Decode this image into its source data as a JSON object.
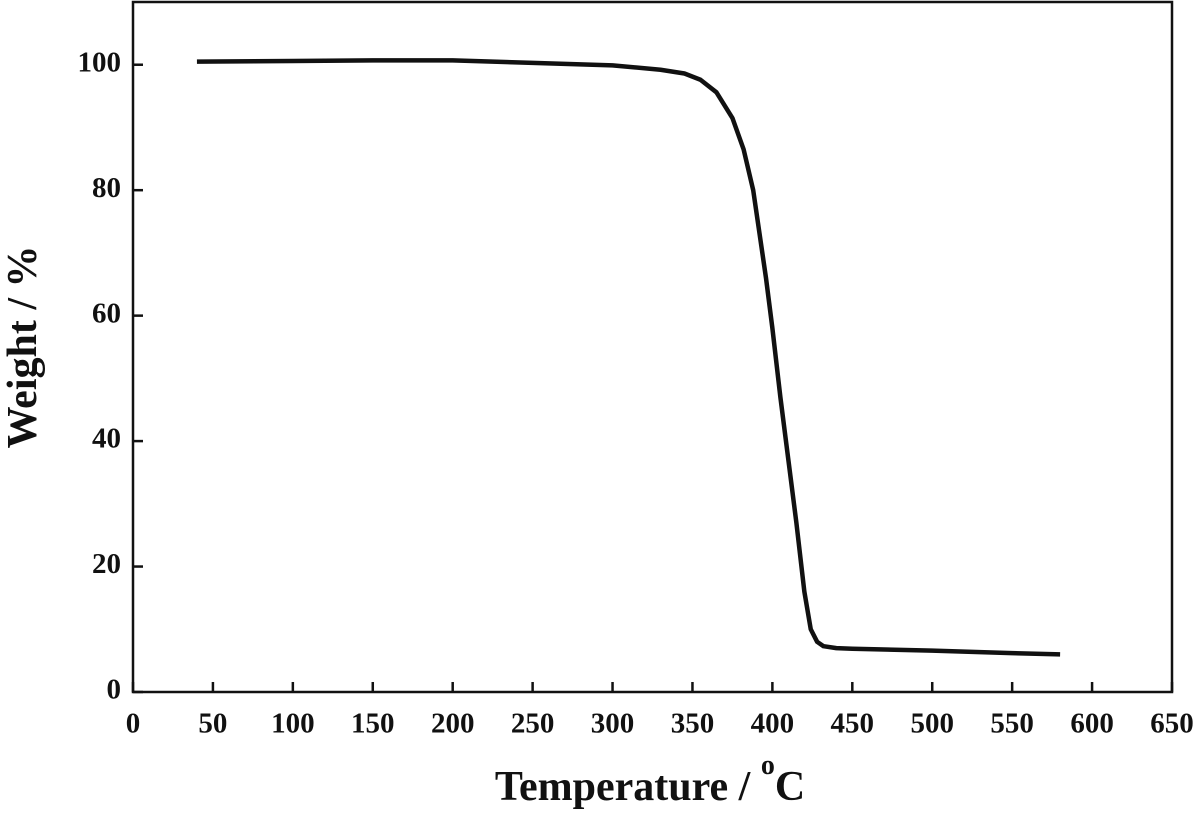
{
  "chart_data": {
    "type": "line",
    "xlabel": {
      "text": "Temperature / ",
      "superscript": "o",
      "unit": "C"
    },
    "ylabel": "Weight / %",
    "x": [
      40,
      100,
      150,
      200,
      250,
      300,
      330,
      345,
      355,
      365,
      375,
      382,
      388,
      392,
      396,
      400,
      405,
      410,
      415,
      420,
      424,
      428,
      432,
      440,
      450,
      500,
      550,
      580
    ],
    "series": [
      {
        "color": "#111111",
        "values": [
          100.5,
          100.6,
          100.7,
          100.7,
          100.3,
          99.9,
          99.2,
          98.6,
          97.6,
          95.6,
          91.5,
          86.5,
          80,
          73,
          66,
          58,
          47,
          37,
          27,
          16,
          10,
          8,
          7.3,
          7,
          6.9,
          6.6,
          6.2,
          6.0
        ]
      }
    ],
    "xlim": [
      0,
      650
    ],
    "ylim": [
      0,
      110
    ],
    "xticks": [
      0,
      50,
      100,
      150,
      200,
      250,
      300,
      350,
      400,
      450,
      500,
      550,
      600,
      650
    ],
    "yticks": [
      0,
      20,
      40,
      60,
      80,
      100
    ],
    "grid": false
  }
}
